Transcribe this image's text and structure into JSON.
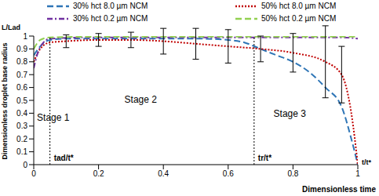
{
  "chart_data": {
    "type": "line",
    "y_label": "Dimensionless droplet base radius",
    "y_unit_label": "L/Lad",
    "x_label": "Dimensionless time",
    "x_unit_label": "t/t*",
    "xlim": [
      0,
      1
    ],
    "xticks": [
      0,
      0.2,
      0.4,
      0.6,
      0.8,
      1
    ],
    "ylim": [
      0,
      1
    ],
    "yticks": [
      0,
      0.1,
      0.2,
      0.3,
      0.4,
      0.5,
      0.6,
      0.7,
      0.8,
      0.9,
      1
    ],
    "grid": false,
    "series": [
      {
        "name": "30% hct 8.0 µm NCM",
        "color": "#2e75b6",
        "line_style": "dashed",
        "x": [
          0,
          0.02,
          0.05,
          0.1,
          0.3,
          0.5,
          0.6,
          0.65,
          0.7,
          0.75,
          0.8,
          0.85,
          0.9,
          0.95,
          0.98,
          1
        ],
        "values": [
          0.85,
          0.92,
          0.97,
          0.98,
          0.98,
          0.98,
          0.97,
          0.95,
          0.9,
          0.85,
          0.8,
          0.72,
          0.6,
          0.45,
          0.2,
          0
        ]
      },
      {
        "name": "50% hct 8.0 µm NCM",
        "color": "#c00000",
        "line_style": "dotted",
        "x": [
          0,
          0.02,
          0.05,
          0.1,
          0.2,
          0.3,
          0.4,
          0.5,
          0.6,
          0.7,
          0.8,
          0.9,
          0.95,
          0.98,
          1
        ],
        "values": [
          0.8,
          0.9,
          0.95,
          0.96,
          0.97,
          0.97,
          0.96,
          0.94,
          0.92,
          0.9,
          0.87,
          0.8,
          0.7,
          0.4,
          0
        ],
        "errors": [
          null,
          null,
          null,
          0.05,
          0.05,
          0.06,
          0.1,
          0.12,
          0.13,
          0.1,
          0.15,
          0.28,
          0.22,
          null,
          null
        ]
      },
      {
        "name": "30% hct 0.2 µm NCM",
        "color": "#7030a0",
        "line_style": "dashdot",
        "x": [
          0,
          0.01,
          0.03,
          0.05,
          0.2,
          0.5,
          0.8,
          0.95,
          1
        ],
        "values": [
          0.75,
          0.85,
          0.95,
          0.98,
          0.99,
          0.99,
          0.99,
          0.99,
          0.98
        ]
      },
      {
        "name": "50% hct 0.2 µm NCM",
        "color": "#92d050",
        "line_style": "dashed",
        "x": [
          0,
          0.02,
          0.05,
          0.2,
          0.5,
          0.8,
          1
        ],
        "values": [
          0.9,
          0.97,
          0.99,
          0.995,
          0.995,
          0.995,
          0.995
        ]
      }
    ],
    "vlines": [
      {
        "x": 0.05,
        "label": "tad/t*"
      },
      {
        "x": 0.68,
        "label": "tr/t*"
      }
    ],
    "annotations": [
      {
        "text": "Stage 1",
        "x": 0.06,
        "y": 0.37
      },
      {
        "text": "Stage 2",
        "x": 0.33,
        "y": 0.51
      },
      {
        "text": "Stage 3",
        "x": 0.79,
        "y": 0.4
      }
    ]
  }
}
